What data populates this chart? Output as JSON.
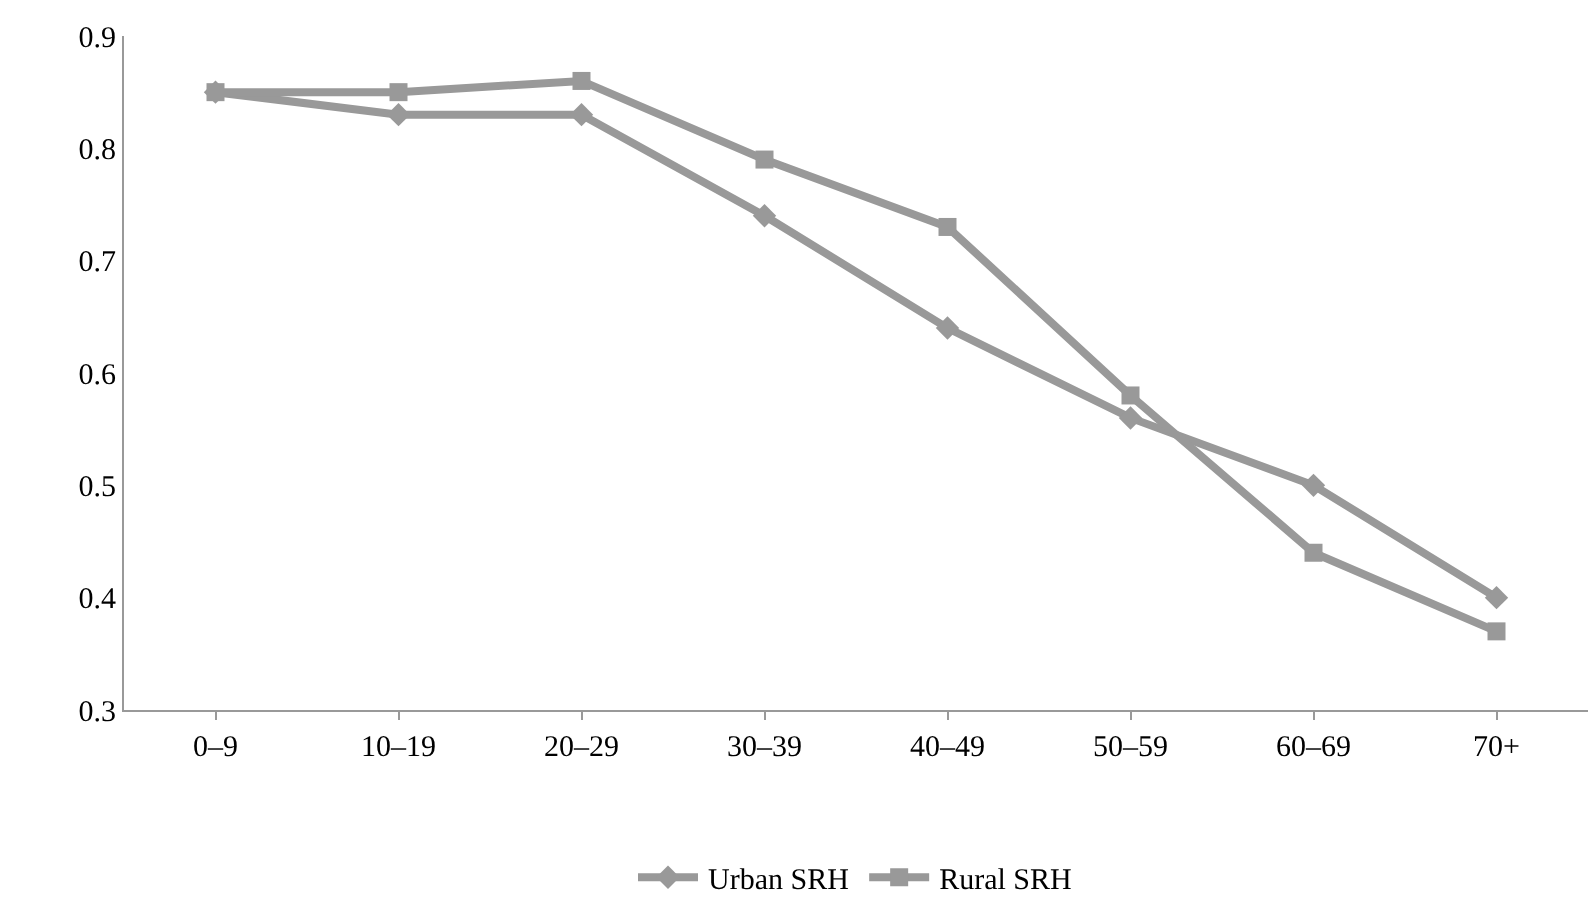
{
  "chart_data": {
    "type": "line",
    "categories": [
      "0–9",
      "10–19",
      "20–29",
      "30–39",
      "40–49",
      "50–59",
      "60–69",
      "70+"
    ],
    "series": [
      {
        "name": "Urban SRH",
        "color": "#999999",
        "marker": "diamond",
        "values": [
          0.85,
          0.83,
          0.83,
          0.74,
          0.64,
          0.56,
          0.5,
          0.4
        ]
      },
      {
        "name": "Rural SRH",
        "color": "#999999",
        "marker": "square",
        "values": [
          0.85,
          0.85,
          0.86,
          0.79,
          0.73,
          0.58,
          0.44,
          0.37
        ]
      }
    ],
    "ylim": [
      0.3,
      0.9
    ],
    "yticks": [
      0.3,
      0.4,
      0.5,
      0.6,
      0.7,
      0.8,
      0.9
    ],
    "legend": "bottom",
    "line_style": "solid"
  }
}
